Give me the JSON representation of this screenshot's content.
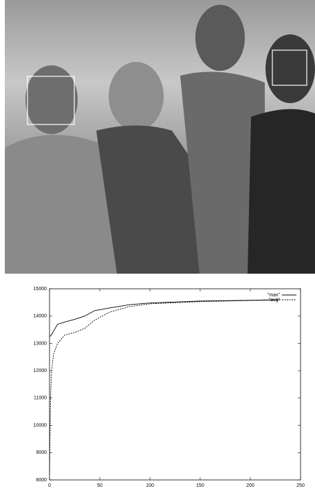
{
  "chart_data": {
    "type": "line",
    "x": [
      0,
      1,
      2,
      4,
      8,
      15,
      25,
      35,
      45,
      60,
      80,
      100,
      150,
      200,
      230
    ],
    "series": [
      {
        "name": "\"max\"",
        "color": "#000000",
        "dash": false,
        "values": [
          13250,
          13280,
          13320,
          13450,
          13700,
          13780,
          13880,
          14000,
          14200,
          14300,
          14420,
          14480,
          14550,
          14580,
          14600
        ]
      },
      {
        "name": "\"avg\"",
        "color": "#000000",
        "dash": true,
        "values": [
          8200,
          11000,
          12000,
          12600,
          13000,
          13300,
          13400,
          13550,
          13850,
          14150,
          14350,
          14450,
          14530,
          14570,
          14590
        ]
      }
    ],
    "xlim": [
      0,
      250
    ],
    "xticks": [
      0,
      50,
      100,
      150,
      200,
      250
    ],
    "ylim": [
      8000,
      15000
    ],
    "yticks": [
      8000,
      9000,
      10000,
      11000,
      12000,
      13000,
      14000,
      15000
    ],
    "grid": false,
    "legend": "top-right"
  }
}
